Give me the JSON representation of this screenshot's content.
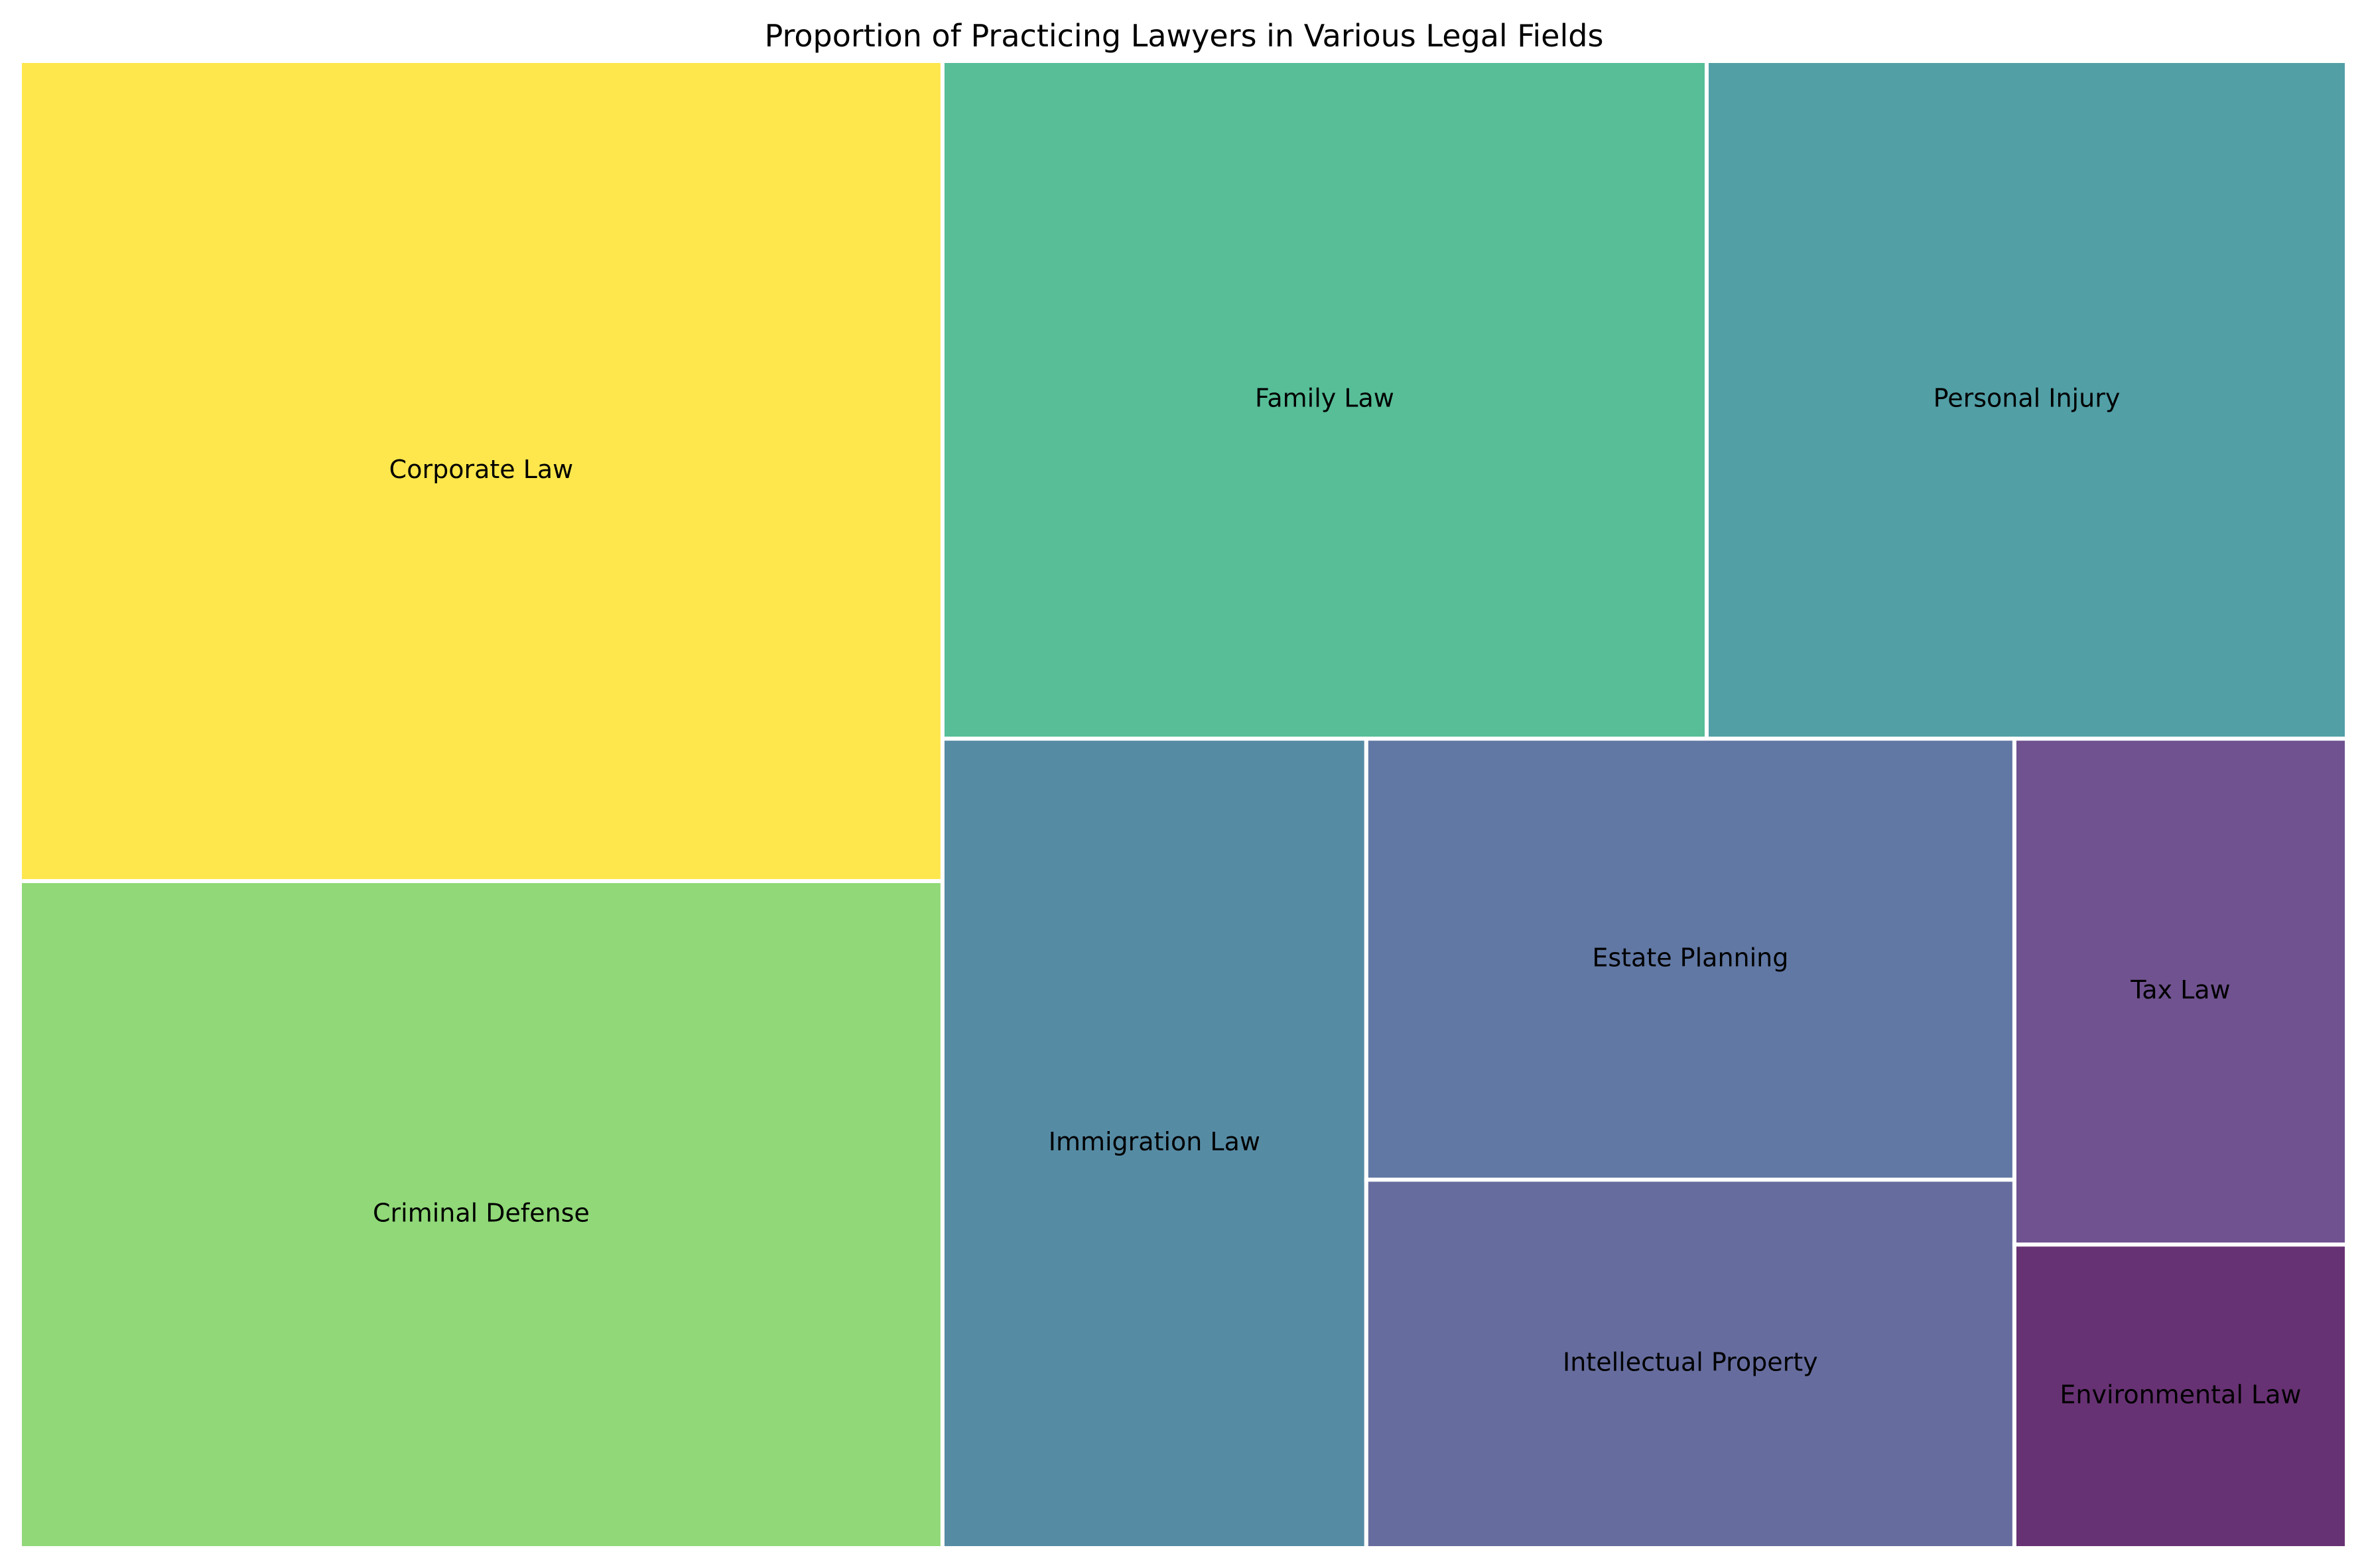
{
  "chart_data": {
    "type": "treemap",
    "title": "Proportion of Practicing Lawyers in Various Legal Fields",
    "items": [
      {
        "name": "Corporate Law",
        "value": 22.5,
        "color": "#fde74c"
      },
      {
        "name": "Criminal Defense",
        "value": 18.3,
        "color": "#90d878"
      },
      {
        "name": "Family Law",
        "value": 15.4,
        "color": "#57be98"
      },
      {
        "name": "Personal Injury",
        "value": 12.9,
        "color": "#529fa6"
      },
      {
        "name": "Immigration Law",
        "value": 10.2,
        "color": "#568ba4"
      },
      {
        "name": "Estate Planning",
        "value": 8.5,
        "color": "#6178a4"
      },
      {
        "name": "Intellectual Property",
        "value": 7.1,
        "color": "#666d9e"
      },
      {
        "name": "Tax Law",
        "value": 5.0,
        "color": "#6f528f"
      },
      {
        "name": "Environmental Law",
        "value": 3.0,
        "color": "#673273"
      }
    ],
    "legend": false,
    "grid": false
  }
}
